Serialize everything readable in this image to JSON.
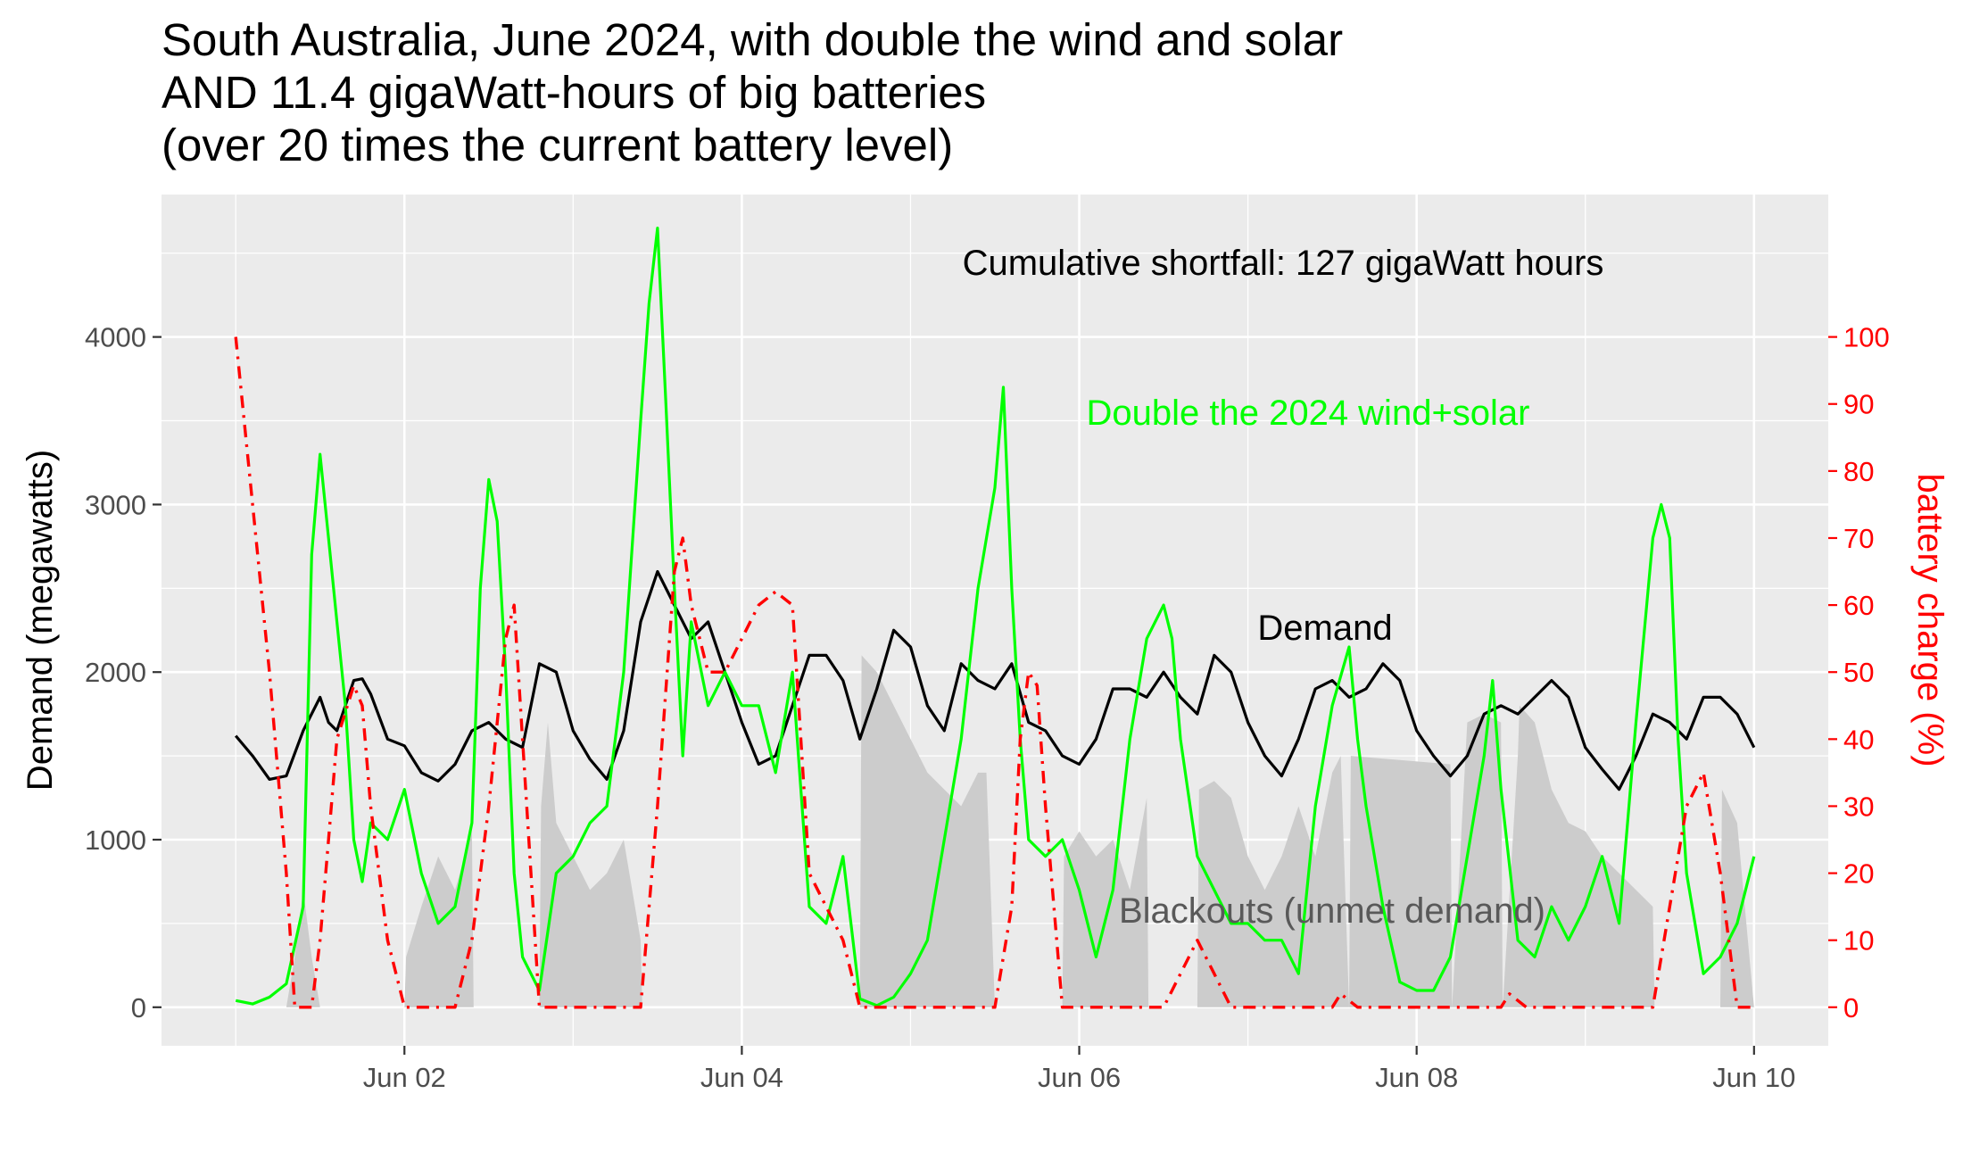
{
  "chart_data": {
    "type": "line",
    "title": [
      "South Australia, June 2024, with double the wind and solar",
      "AND 11.4 gigaWatt-hours of big batteries",
      "(over 20 times the current battery level)"
    ],
    "ylabel": "Demand (megawatts)",
    "y2label": "battery charge (%)",
    "xlim_days": [
      0.56,
      10.44
    ],
    "ylim": [
      -230,
      4850
    ],
    "y_ticks": [
      0,
      1000,
      2000,
      3000,
      4000
    ],
    "y_tick_labels": [
      "0",
      "1000",
      "2000",
      "3000",
      "4000"
    ],
    "y2_ticks": [
      0,
      10,
      20,
      30,
      40,
      50,
      60,
      70,
      80,
      90,
      100
    ],
    "y2_tick_labels": [
      "0",
      "10",
      "20",
      "30",
      "40",
      "50",
      "60",
      "70",
      "80",
      "90",
      "100"
    ],
    "x_ticks": [
      2,
      4,
      6,
      8,
      10
    ],
    "x_tick_labels": [
      "Jun 02",
      "Jun 04",
      "Jun 06",
      "Jun 08",
      "Jun 10"
    ],
    "grid": true,
    "colors": {
      "panel": "#ebebeb",
      "grid": "#ffffff",
      "demand": "#000000",
      "renewables": "#00ff00",
      "battery": "#ff0000",
      "blackouts": "#cccccc"
    },
    "annotations": {
      "shortfall": "Cumulative shortfall: 127 gigaWatt hours",
      "renewables": "Double the 2024 wind+solar",
      "demand": "Demand",
      "blackouts": "Blackouts (unmet demand)"
    },
    "series": [
      {
        "name": "Demand",
        "color": "#000000",
        "x_days": [
          1.0,
          1.1,
          1.2,
          1.3,
          1.4,
          1.5,
          1.55,
          1.6,
          1.7,
          1.75,
          1.8,
          1.9,
          2.0,
          2.1,
          2.2,
          2.3,
          2.4,
          2.5,
          2.6,
          2.7,
          2.8,
          2.9,
          3.0,
          3.1,
          3.2,
          3.3,
          3.4,
          3.5,
          3.6,
          3.7,
          3.8,
          3.9,
          4.0,
          4.1,
          4.2,
          4.3,
          4.4,
          4.5,
          4.6,
          4.7,
          4.8,
          4.9,
          5.0,
          5.1,
          5.2,
          5.3,
          5.4,
          5.5,
          5.6,
          5.7,
          5.8,
          5.9,
          6.0,
          6.1,
          6.2,
          6.3,
          6.4,
          6.5,
          6.6,
          6.7,
          6.8,
          6.9,
          7.0,
          7.1,
          7.2,
          7.3,
          7.4,
          7.5,
          7.6,
          7.7,
          7.8,
          7.9,
          8.0,
          8.1,
          8.2,
          8.3,
          8.4,
          8.5,
          8.6,
          8.7,
          8.8,
          8.9,
          9.0,
          9.1,
          9.2,
          9.3,
          9.4,
          9.5,
          9.6,
          9.7,
          9.8,
          9.9,
          10.0
        ],
        "values": [
          1620,
          1500,
          1360,
          1380,
          1650,
          1850,
          1700,
          1650,
          1950,
          1960,
          1870,
          1600,
          1560,
          1400,
          1350,
          1450,
          1650,
          1700,
          1600,
          1550,
          2050,
          2000,
          1650,
          1480,
          1360,
          1650,
          2300,
          2600,
          2400,
          2200,
          2300,
          2000,
          1700,
          1450,
          1500,
          1800,
          2100,
          2100,
          1950,
          1600,
          1900,
          2250,
          2150,
          1800,
          1650,
          2050,
          1950,
          1900,
          2050,
          1700,
          1650,
          1500,
          1450,
          1600,
          1900,
          1900,
          1850,
          2000,
          1850,
          1750,
          2100,
          2000,
          1700,
          1500,
          1380,
          1600,
          1900,
          1950,
          1850,
          1900,
          2050,
          1950,
          1650,
          1500,
          1380,
          1500,
          1750,
          1800,
          1750,
          1850,
          1950,
          1850,
          1550,
          1420,
          1300,
          1500,
          1750,
          1700,
          1600,
          1850,
          1850,
          1750,
          1550
        ]
      },
      {
        "name": "Double the 2024 wind+solar",
        "color": "#00ff00",
        "x_days": [
          1.0,
          1.1,
          1.2,
          1.3,
          1.4,
          1.45,
          1.5,
          1.55,
          1.6,
          1.65,
          1.7,
          1.75,
          1.8,
          1.9,
          2.0,
          2.1,
          2.2,
          2.3,
          2.4,
          2.45,
          2.5,
          2.55,
          2.6,
          2.65,
          2.7,
          2.8,
          2.9,
          3.0,
          3.1,
          3.2,
          3.3,
          3.4,
          3.45,
          3.5,
          3.55,
          3.6,
          3.65,
          3.7,
          3.8,
          3.9,
          4.0,
          4.1,
          4.2,
          4.3,
          4.4,
          4.5,
          4.6,
          4.7,
          4.8,
          4.9,
          5.0,
          5.1,
          5.2,
          5.3,
          5.4,
          5.5,
          5.55,
          5.6,
          5.65,
          5.7,
          5.8,
          5.9,
          6.0,
          6.1,
          6.2,
          6.3,
          6.4,
          6.5,
          6.55,
          6.6,
          6.7,
          6.8,
          6.9,
          7.0,
          7.1,
          7.2,
          7.3,
          7.4,
          7.5,
          7.6,
          7.65,
          7.7,
          7.8,
          7.9,
          8.0,
          8.1,
          8.2,
          8.3,
          8.4,
          8.45,
          8.5,
          8.6,
          8.7,
          8.8,
          8.9,
          9.0,
          9.1,
          9.2,
          9.3,
          9.4,
          9.45,
          9.5,
          9.55,
          9.6,
          9.7,
          9.8,
          9.9,
          10.0
        ],
        "values": [
          40,
          20,
          60,
          140,
          600,
          2700,
          3300,
          2800,
          2300,
          1800,
          1000,
          750,
          1100,
          1000,
          1300,
          800,
          500,
          600,
          1100,
          2500,
          3150,
          2900,
          2000,
          800,
          300,
          100,
          800,
          900,
          1100,
          1200,
          2000,
          3500,
          4200,
          4650,
          3600,
          2500,
          1500,
          2300,
          1800,
          2000,
          1800,
          1800,
          1400,
          2000,
          600,
          500,
          900,
          50,
          10,
          60,
          200,
          400,
          1000,
          1600,
          2500,
          3100,
          3700,
          2500,
          1600,
          1000,
          900,
          1000,
          700,
          300,
          700,
          1600,
          2200,
          2400,
          2200,
          1600,
          900,
          700,
          500,
          500,
          400,
          400,
          200,
          1200,
          1800,
          2150,
          1600,
          1200,
          600,
          150,
          100,
          100,
          300,
          900,
          1500,
          1950,
          1300,
          400,
          300,
          600,
          400,
          600,
          900,
          500,
          1700,
          2800,
          3000,
          2800,
          1600,
          800,
          200,
          300,
          500,
          900
        ]
      },
      {
        "name": "battery charge (%)",
        "color": "#ff0000",
        "x_days": [
          1.0,
          1.1,
          1.2,
          1.3,
          1.35,
          1.45,
          1.5,
          1.55,
          1.6,
          1.7,
          1.75,
          1.8,
          1.9,
          2.0,
          2.3,
          2.4,
          2.5,
          2.6,
          2.65,
          2.7,
          2.8,
          3.4,
          3.5,
          3.6,
          3.65,
          3.7,
          3.8,
          3.9,
          4.0,
          4.1,
          4.2,
          4.3,
          4.4,
          4.5,
          4.6,
          4.7,
          5.0,
          5.5,
          5.6,
          5.65,
          5.7,
          5.75,
          5.8,
          5.9,
          6.0,
          6.5,
          6.6,
          6.7,
          6.8,
          6.9,
          7.5,
          7.55,
          7.6,
          7.65,
          8.5,
          8.55,
          8.6,
          8.65,
          9.4,
          9.5,
          9.6,
          9.7,
          9.8,
          9.9,
          10.0
        ],
        "values": [
          100,
          75,
          50,
          20,
          0,
          0,
          10,
          25,
          40,
          48,
          45,
          30,
          10,
          0,
          0,
          10,
          30,
          55,
          60,
          40,
          0,
          0,
          30,
          65,
          70,
          60,
          50,
          50,
          55,
          60,
          62,
          60,
          20,
          15,
          10,
          0,
          0,
          0,
          15,
          40,
          50,
          48,
          30,
          0,
          0,
          0,
          5,
          10,
          5,
          0,
          0,
          2,
          1,
          0,
          0,
          2,
          1,
          0,
          0,
          15,
          30,
          35,
          20,
          0,
          0
        ]
      },
      {
        "name": "Blackouts (unmet demand)",
        "color": "#cccccc",
        "x_days": [
          1.0,
          1.3,
          1.35,
          1.4,
          1.45,
          1.5,
          2.0,
          2.01,
          2.1,
          2.2,
          2.3,
          2.4,
          2.41,
          2.8,
          2.81,
          2.85,
          2.9,
          3.0,
          3.1,
          3.2,
          3.3,
          3.4,
          3.41,
          4.7,
          4.71,
          4.8,
          4.9,
          5.0,
          5.1,
          5.2,
          5.3,
          5.4,
          5.45,
          5.5,
          5.9,
          5.91,
          6.0,
          6.1,
          6.2,
          6.3,
          6.4,
          6.41,
          6.7,
          6.71,
          6.8,
          6.9,
          7.0,
          7.1,
          7.2,
          7.3,
          7.4,
          7.5,
          7.55,
          7.6,
          7.61,
          8.2,
          8.21,
          8.3,
          8.4,
          8.5,
          8.51,
          8.6,
          8.61,
          8.7,
          8.8,
          8.9,
          9.0,
          9.1,
          9.2,
          9.3,
          9.4,
          9.41,
          9.8,
          9.81,
          9.9,
          10.0
        ],
        "values": [
          0,
          0,
          300,
          700,
          300,
          0,
          0,
          300,
          600,
          900,
          700,
          1050,
          0,
          0,
          1200,
          1700,
          1100,
          900,
          700,
          800,
          1000,
          400,
          0,
          0,
          2100,
          2000,
          1800,
          1600,
          1400,
          1300,
          1200,
          1400,
          1400,
          0,
          0,
          900,
          1050,
          900,
          1000,
          700,
          1250,
          0,
          0,
          1300,
          1350,
          1250,
          900,
          700,
          900,
          1200,
          900,
          1400,
          1500,
          0,
          1500,
          1450,
          0,
          1700,
          1750,
          1700,
          0,
          1500,
          1800,
          1700,
          1300,
          1100,
          1050,
          900,
          800,
          700,
          600,
          0,
          0,
          1300,
          1100,
          0
        ]
      }
    ]
  }
}
